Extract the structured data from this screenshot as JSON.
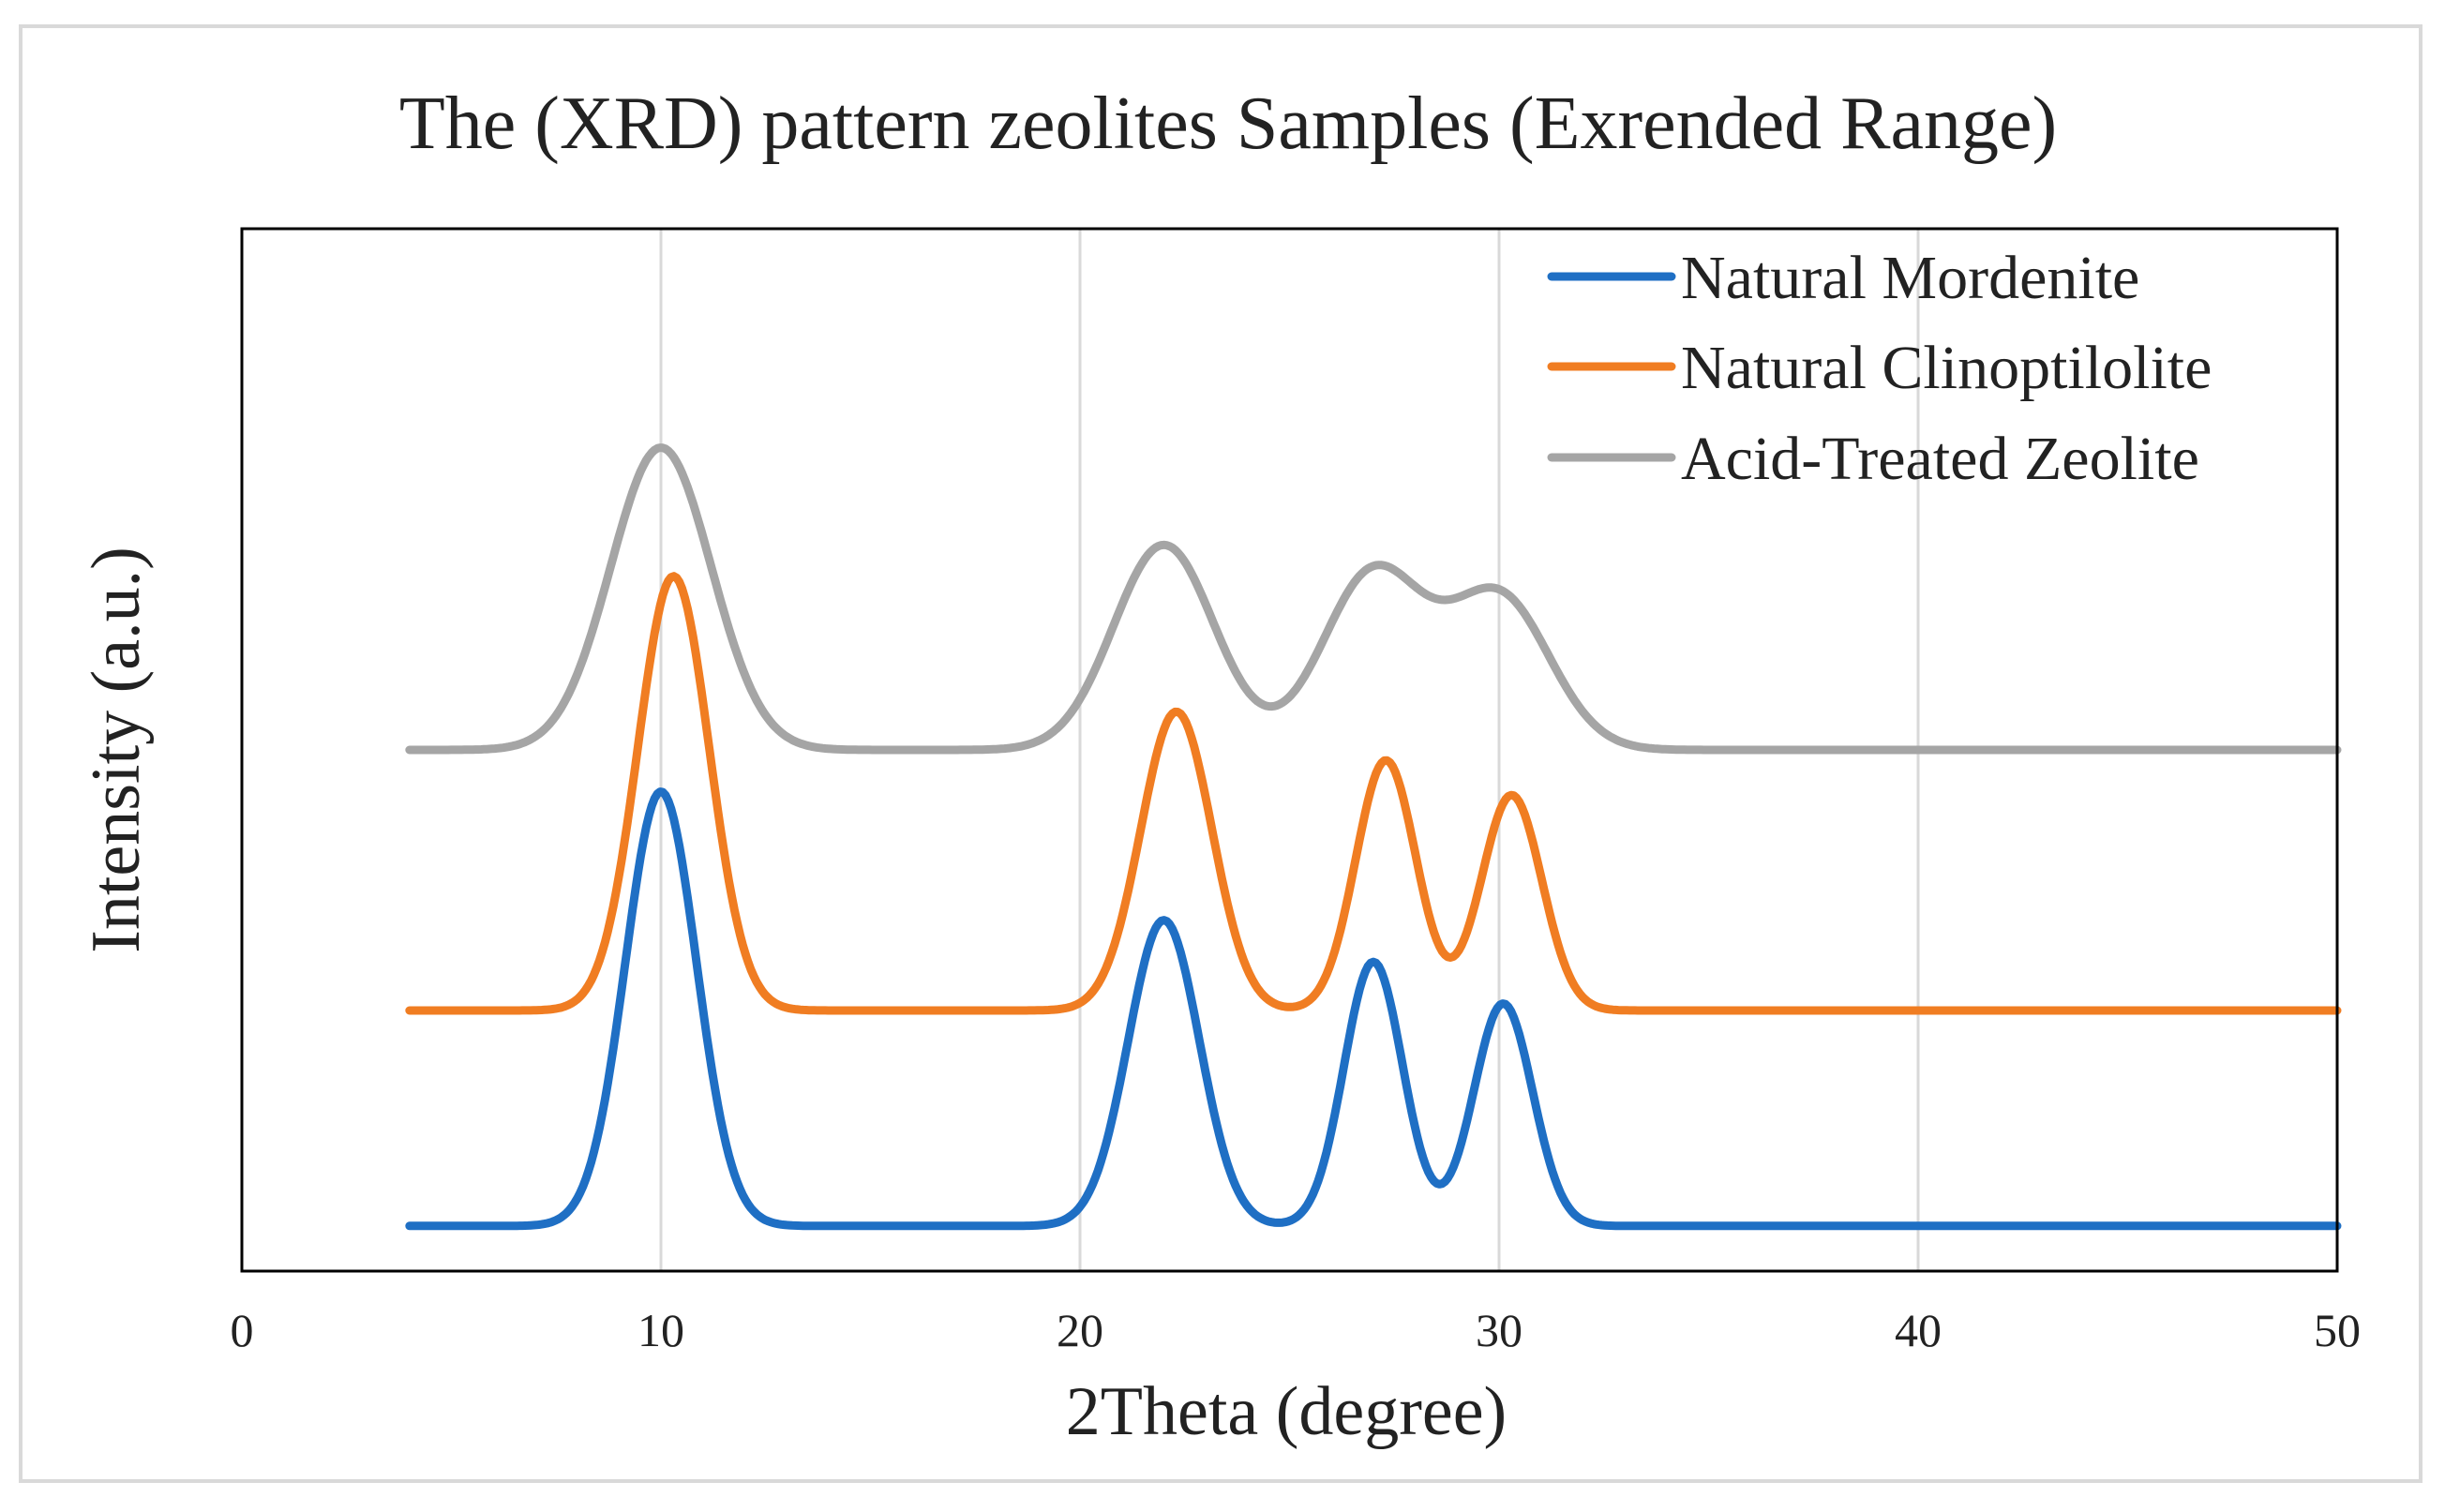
{
  "chart_data": {
    "type": "line",
    "title": "The (XRD) pattern zeolites Samples (Exrended Range)",
    "xlabel": "2Theta (degree)",
    "ylabel": "Intensity (a.u.)",
    "xlim": [
      0,
      50
    ],
    "ylim": [
      0,
      3.0
    ],
    "x_ticks": [
      "0",
      "10",
      "20",
      "30",
      "40",
      "50"
    ],
    "x_tick_values": [
      0,
      10,
      20,
      30,
      40,
      50
    ],
    "grid": "vertical",
    "legend_position": "top-right",
    "x_start": 4,
    "x_end": 50,
    "series": [
      {
        "name": "Natural Mordenite",
        "color": "#1f6fc4",
        "baseline": 0.13,
        "peaks": [
          {
            "x": 10.0,
            "height": 1.25,
            "width": 0.85
          },
          {
            "x": 22.0,
            "height": 0.88,
            "width": 0.85
          },
          {
            "x": 27.0,
            "height": 0.76,
            "width": 0.7
          },
          {
            "x": 30.1,
            "height": 0.64,
            "width": 0.7
          }
        ]
      },
      {
        "name": "Natural Clinoptilolite",
        "color": "#f07d22",
        "baseline": 0.75,
        "peaks": [
          {
            "x": 10.3,
            "height": 1.25,
            "width": 0.85
          },
          {
            "x": 22.3,
            "height": 0.86,
            "width": 0.85
          },
          {
            "x": 27.3,
            "height": 0.72,
            "width": 0.72
          },
          {
            "x": 30.3,
            "height": 0.62,
            "width": 0.72
          }
        ]
      },
      {
        "name": "Acid-Treated Zeolite",
        "color": "#a5a5a5",
        "baseline": 1.5,
        "peaks": [
          {
            "x": 10.0,
            "height": 0.87,
            "width": 1.2
          },
          {
            "x": 22.0,
            "height": 0.59,
            "width": 1.2
          },
          {
            "x": 27.0,
            "height": 0.51,
            "width": 1.2
          },
          {
            "x": 30.0,
            "height": 0.44,
            "width": 1.2
          }
        ]
      }
    ]
  }
}
